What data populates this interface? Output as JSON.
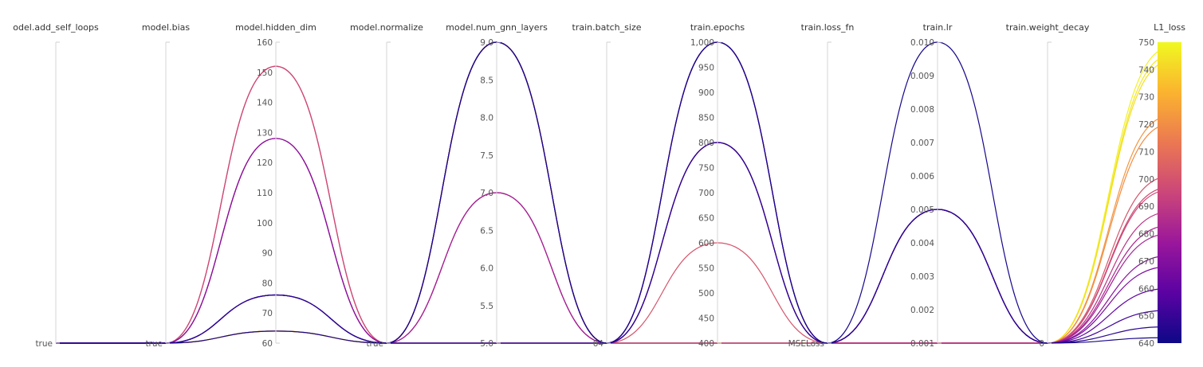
{
  "chart_data": {
    "type": "parallel_coordinates",
    "color_metric": "L1_loss",
    "colorscale": [
      "#0d0887",
      "#5b02a3",
      "#9a179b",
      "#cb4679",
      "#eb7852",
      "#fbb32f",
      "#f0f921"
    ],
    "axes": [
      {
        "key": "add_self_loops",
        "title": "odel.add_self_loops",
        "kind": "categorical",
        "categories": [
          "true"
        ]
      },
      {
        "key": "bias",
        "title": "model.bias",
        "kind": "categorical",
        "categories": [
          "true"
        ]
      },
      {
        "key": "hidden_dim",
        "title": "model.hidden_dim",
        "kind": "numeric",
        "range": [
          60,
          160
        ],
        "ticks": [
          60,
          70,
          80,
          90,
          100,
          110,
          120,
          130,
          140,
          150,
          160
        ],
        "tick_labels": [
          "60",
          "70",
          "80",
          "90",
          "100",
          "110",
          "120",
          "130",
          "140",
          "150",
          "160"
        ]
      },
      {
        "key": "normalize",
        "title": "model.normalize",
        "kind": "categorical",
        "categories": [
          "true"
        ]
      },
      {
        "key": "num_gnn_layers",
        "title": "model.num_gnn_layers",
        "kind": "numeric",
        "range": [
          5,
          9
        ],
        "ticks": [
          5,
          5.5,
          6,
          6.5,
          7,
          7.5,
          8,
          8.5,
          9
        ],
        "tick_labels": [
          "5.0",
          "5.5",
          "6.0",
          "6.5",
          "7.0",
          "7.5",
          "8.0",
          "8.5",
          "9.0"
        ]
      },
      {
        "key": "batch_size",
        "title": "train.batch_size",
        "kind": "categorical",
        "categories": [
          "64"
        ]
      },
      {
        "key": "epochs",
        "title": "train.epochs",
        "kind": "numeric",
        "range": [
          400,
          1000
        ],
        "ticks": [
          400,
          450,
          500,
          550,
          600,
          650,
          700,
          750,
          800,
          850,
          900,
          950,
          1000
        ],
        "tick_labels": [
          "400",
          "450",
          "500",
          "550",
          "600",
          "650",
          "700",
          "750",
          "800",
          "850",
          "900",
          "950",
          "1,000"
        ]
      },
      {
        "key": "loss_fn",
        "title": "train.loss_fn",
        "kind": "categorical",
        "categories": [
          "MSELoss"
        ]
      },
      {
        "key": "lr",
        "title": "train.lr",
        "kind": "numeric",
        "range": [
          0.001,
          0.01
        ],
        "ticks": [
          0.001,
          0.002,
          0.003,
          0.004,
          0.005,
          0.006,
          0.007,
          0.008,
          0.009,
          0.01
        ],
        "tick_labels": [
          "0.001",
          "0.002",
          "0.003",
          "0.004",
          "0.005",
          "0.006",
          "0.007",
          "0.008",
          "0.009",
          "0.010"
        ]
      },
      {
        "key": "weight_decay",
        "title": "train.weight_decay",
        "kind": "categorical",
        "categories": [
          "0"
        ]
      },
      {
        "key": "L1_loss",
        "title": "L1_loss",
        "kind": "numeric",
        "range": [
          640,
          750
        ],
        "ticks": [
          640,
          650,
          660,
          670,
          680,
          690,
          700,
          710,
          720,
          730,
          740,
          750
        ],
        "tick_labels": [
          "640",
          "650",
          "660",
          "670",
          "680",
          "690",
          "700",
          "710",
          "720",
          "730",
          "740",
          "750"
        ],
        "colorbar": true
      }
    ],
    "runs": [
      {
        "add_self_loops": "true",
        "bias": "true",
        "hidden_dim": 64,
        "normalize": "true",
        "num_gnn_layers": 9,
        "batch_size": "64",
        "epochs": 400,
        "loss_fn": "MSELoss",
        "lr": 0.001,
        "weight_decay": "0",
        "L1_loss": 748
      },
      {
        "add_self_loops": "true",
        "bias": "true",
        "hidden_dim": 64,
        "normalize": "true",
        "num_gnn_layers": 9,
        "batch_size": "64",
        "epochs": 400,
        "loss_fn": "MSELoss",
        "lr": 0.001,
        "weight_decay": "0",
        "L1_loss": 745
      },
      {
        "add_self_loops": "true",
        "bias": "true",
        "hidden_dim": 64,
        "normalize": "true",
        "num_gnn_layers": 9,
        "batch_size": "64",
        "epochs": 400,
        "loss_fn": "MSELoss",
        "lr": 0.001,
        "weight_decay": "0",
        "L1_loss": 743
      },
      {
        "add_self_loops": "true",
        "bias": "true",
        "hidden_dim": 64,
        "normalize": "true",
        "num_gnn_layers": 9,
        "batch_size": "64",
        "epochs": 400,
        "loss_fn": "MSELoss",
        "lr": 0.001,
        "weight_decay": "0",
        "L1_loss": 723
      },
      {
        "add_self_loops": "true",
        "bias": "true",
        "hidden_dim": 64,
        "normalize": "true",
        "num_gnn_layers": 9,
        "batch_size": "64",
        "epochs": 400,
        "loss_fn": "MSELoss",
        "lr": 0.001,
        "weight_decay": "0",
        "L1_loss": 720
      },
      {
        "add_self_loops": "true",
        "bias": "true",
        "hidden_dim": 152,
        "normalize": "true",
        "num_gnn_layers": 5,
        "batch_size": "64",
        "epochs": 600,
        "loss_fn": "MSELoss",
        "lr": 0.001,
        "weight_decay": "0",
        "L1_loss": 701
      },
      {
        "add_self_loops": "true",
        "bias": "true",
        "hidden_dim": 152,
        "normalize": "true",
        "num_gnn_layers": 5,
        "batch_size": "64",
        "epochs": 800,
        "loss_fn": "MSELoss",
        "lr": 0.001,
        "weight_decay": "0",
        "L1_loss": 697
      },
      {
        "add_self_loops": "true",
        "bias": "true",
        "hidden_dim": 152,
        "normalize": "true",
        "num_gnn_layers": 7,
        "batch_size": "64",
        "epochs": 1000,
        "loss_fn": "MSELoss",
        "lr": 0.001,
        "weight_decay": "0",
        "L1_loss": 696
      },
      {
        "add_self_loops": "true",
        "bias": "true",
        "hidden_dim": 128,
        "normalize": "true",
        "num_gnn_layers": 5,
        "batch_size": "64",
        "epochs": 1000,
        "loss_fn": "MSELoss",
        "lr": 0.001,
        "weight_decay": "0",
        "L1_loss": 688
      },
      {
        "add_self_loops": "true",
        "bias": "true",
        "hidden_dim": 128,
        "normalize": "true",
        "num_gnn_layers": 7,
        "batch_size": "64",
        "epochs": 800,
        "loss_fn": "MSELoss",
        "lr": 0.001,
        "weight_decay": "0",
        "L1_loss": 683
      },
      {
        "add_self_loops": "true",
        "bias": "true",
        "hidden_dim": 128,
        "normalize": "true",
        "num_gnn_layers": 7,
        "batch_size": "64",
        "epochs": 400,
        "loss_fn": "MSELoss",
        "lr": 0.005,
        "weight_decay": "0",
        "L1_loss": 680
      },
      {
        "add_self_loops": "true",
        "bias": "true",
        "hidden_dim": 128,
        "normalize": "true",
        "num_gnn_layers": 9,
        "batch_size": "64",
        "epochs": 800,
        "loss_fn": "MSELoss",
        "lr": 0.005,
        "weight_decay": "0",
        "L1_loss": 672
      },
      {
        "add_self_loops": "true",
        "bias": "true",
        "hidden_dim": 76,
        "normalize": "true",
        "num_gnn_layers": 9,
        "batch_size": "64",
        "epochs": 1000,
        "loss_fn": "MSELoss",
        "lr": 0.005,
        "weight_decay": "0",
        "L1_loss": 668
      },
      {
        "add_self_loops": "true",
        "bias": "true",
        "hidden_dim": 76,
        "normalize": "true",
        "num_gnn_layers": 5,
        "batch_size": "64",
        "epochs": 800,
        "loss_fn": "MSELoss",
        "lr": 0.005,
        "weight_decay": "0",
        "L1_loss": 660
      },
      {
        "add_self_loops": "true",
        "bias": "true",
        "hidden_dim": 76,
        "normalize": "true",
        "num_gnn_layers": 9,
        "batch_size": "64",
        "epochs": 1000,
        "loss_fn": "MSELoss",
        "lr": 0.005,
        "weight_decay": "0",
        "L1_loss": 652
      },
      {
        "add_self_loops": "true",
        "bias": "true",
        "hidden_dim": 76,
        "normalize": "true",
        "num_gnn_layers": 5,
        "batch_size": "64",
        "epochs": 800,
        "loss_fn": "MSELoss",
        "lr": 0.005,
        "weight_decay": "0",
        "L1_loss": 646
      },
      {
        "add_self_loops": "true",
        "bias": "true",
        "hidden_dim": 64,
        "normalize": "true",
        "num_gnn_layers": 9,
        "batch_size": "64",
        "epochs": 1000,
        "loss_fn": "MSELoss",
        "lr": 0.01,
        "weight_decay": "0",
        "L1_loss": 642
      }
    ]
  }
}
